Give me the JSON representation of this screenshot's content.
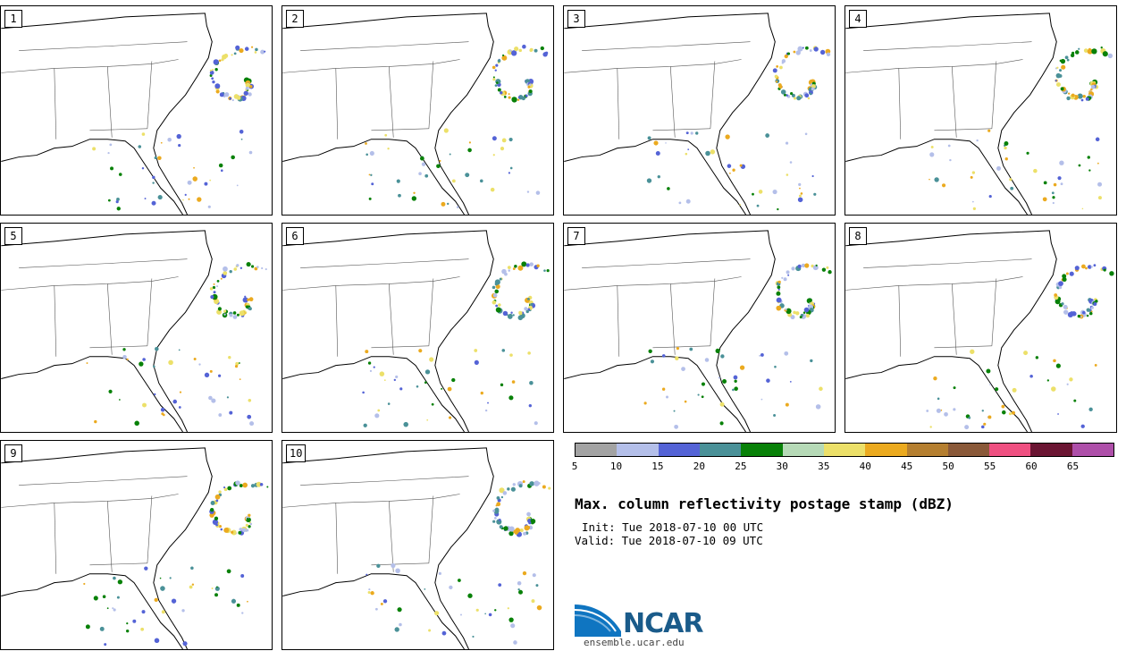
{
  "panels": [
    "1",
    "2",
    "3",
    "4",
    "5",
    "6",
    "7",
    "8",
    "9",
    "10"
  ],
  "colorbar": {
    "colors": [
      "#a3a3a3",
      "#b4bfe9",
      "#5463d6",
      "#4a9198",
      "#088108",
      "#b6dab7",
      "#ece069",
      "#ebaa1f",
      "#b57f30",
      "#8a5939",
      "#ef5081",
      "#6b1633",
      "#ae4fa9"
    ],
    "ticks": [
      "5",
      "10",
      "15",
      "20",
      "25",
      "30",
      "35",
      "40",
      "45",
      "50",
      "55",
      "60",
      "65"
    ]
  },
  "title": "Max. column reflectivity postage stamp (dBZ)",
  "init": "Init: Tue 2018-07-10 00 UTC",
  "valid": "Valid: Tue 2018-07-10 09 UTC",
  "logo": {
    "name": "NCAR",
    "url": "ensemble.ucar.edu"
  }
}
